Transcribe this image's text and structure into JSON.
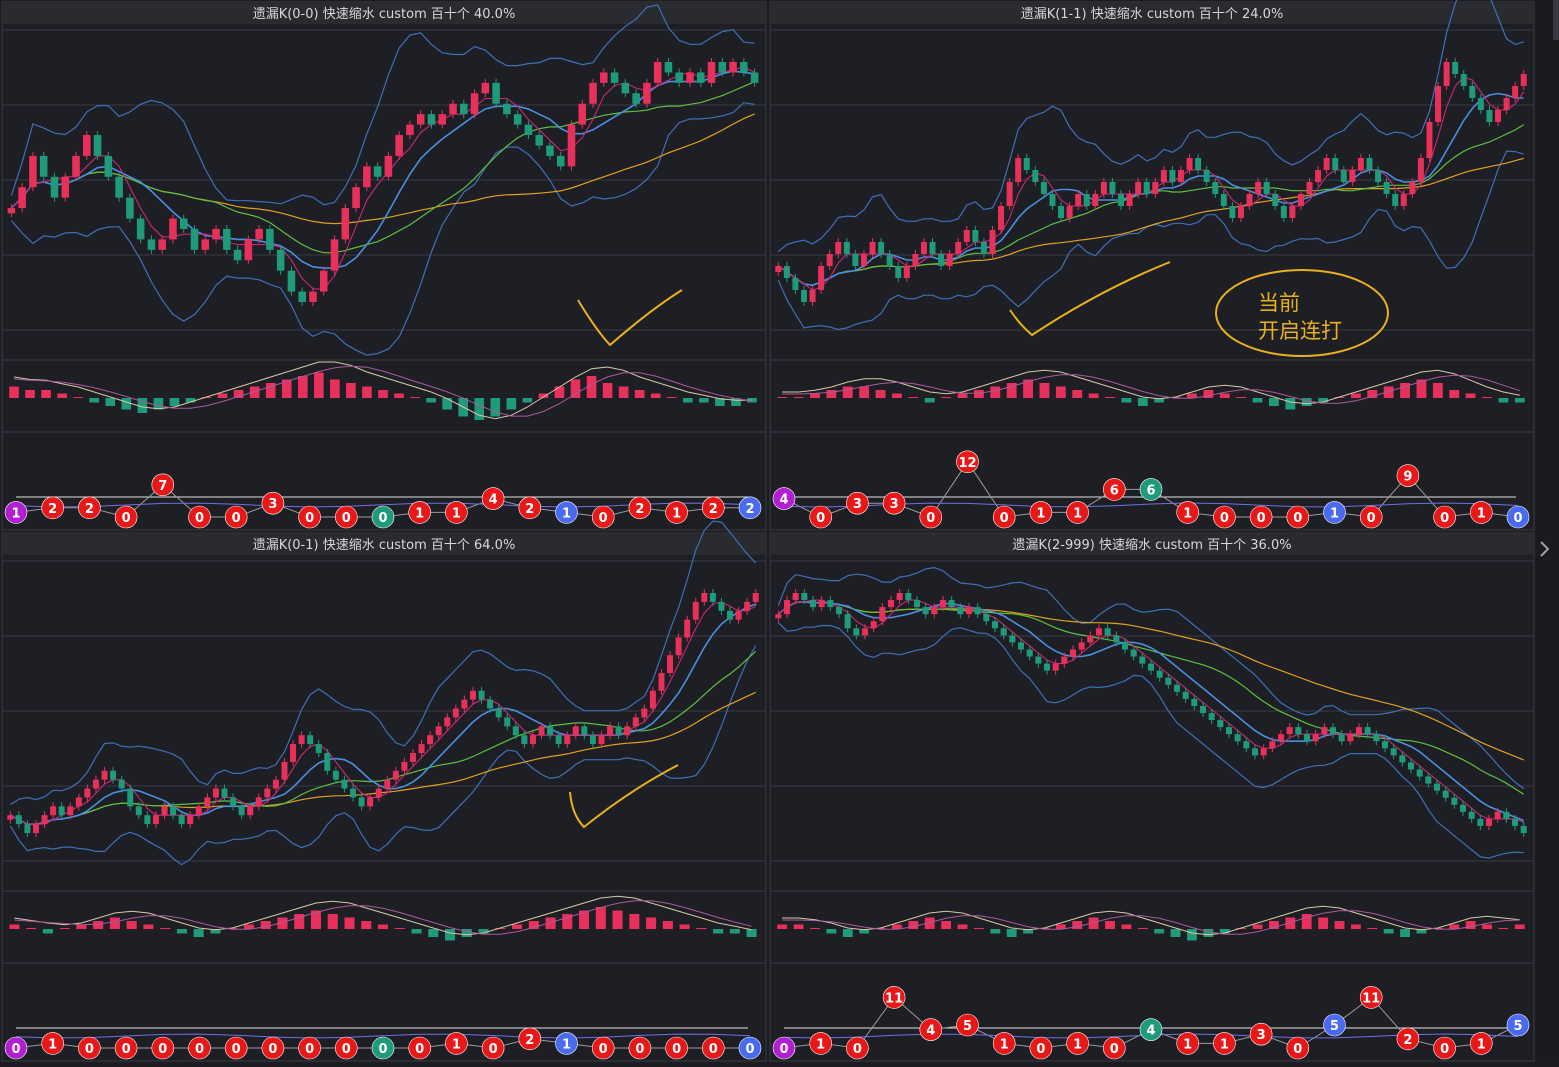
{
  "colors": {
    "background": "#1c1d22",
    "panel_background": "#1e1f25",
    "title_bar": "#2a2b30",
    "up_candle": "#e8315a",
    "down_candle": "#1f9a7a",
    "ma_magenta": "#c8287a",
    "ma_blue": "#4a8ee0",
    "ma_green": "#5cc040",
    "ma_orange": "#e0a020",
    "bollinger": "#3f6fb8",
    "annotation": "#e8b020",
    "bubble_red": "#e81818",
    "bubble_green": "#1f9a7a",
    "bubble_blue": "#4a6af0",
    "bubble_purple": "#b020d0"
  },
  "icons": {
    "right_nav": "chevron-right-icon"
  },
  "chart_data": [
    {
      "type": "candlestick",
      "title": "遗漏K(0-0)  快速缩水  custom  百十个  40.0%",
      "trend_prices": [
        0,
        2,
        5,
        3,
        1,
        3,
        5,
        7,
        5,
        3,
        1,
        -1,
        -3,
        -4,
        -3,
        -1,
        -2,
        -4,
        -3,
        -2,
        -4,
        -5,
        -3,
        -2,
        -4,
        -6,
        -8,
        -9,
        -8,
        -6,
        -3,
        0,
        2,
        4,
        3,
        5,
        7,
        8,
        9,
        8,
        9,
        10,
        9,
        11,
        12,
        10,
        9,
        8,
        7,
        6,
        5,
        4,
        8,
        10,
        12,
        13,
        12,
        11,
        10,
        12,
        14,
        13,
        12,
        13,
        12,
        14,
        13,
        14,
        13,
        12
      ],
      "macd_hist": [
        3,
        2,
        2,
        1,
        0,
        -1,
        -2,
        -3,
        -4,
        -3,
        -2,
        -1,
        0,
        1,
        2,
        3,
        4,
        5,
        6,
        7,
        5,
        4,
        3,
        2,
        1,
        0,
        -1,
        -3,
        -5,
        -6,
        -5,
        -3,
        -1,
        1,
        3,
        5,
        6,
        4,
        3,
        2,
        1,
        0,
        -1,
        -1,
        -2,
        -2,
        -1
      ],
      "miss_bubbles": [
        {
          "v": "1",
          "c": "purple"
        },
        {
          "v": "2",
          "c": "red"
        },
        {
          "v": "2",
          "c": "red"
        },
        {
          "v": "0",
          "c": "red"
        },
        {
          "v": "7",
          "c": "red"
        },
        {
          "v": "0",
          "c": "red"
        },
        {
          "v": "0",
          "c": "red"
        },
        {
          "v": "3",
          "c": "red"
        },
        {
          "v": "0",
          "c": "red"
        },
        {
          "v": "0",
          "c": "red"
        },
        {
          "v": "0",
          "c": "green"
        },
        {
          "v": "1",
          "c": "red"
        },
        {
          "v": "1",
          "c": "red"
        },
        {
          "v": "4",
          "c": "red"
        },
        {
          "v": "2",
          "c": "red"
        },
        {
          "v": "1",
          "c": "blue"
        },
        {
          "v": "0",
          "c": "red"
        },
        {
          "v": "2",
          "c": "red"
        },
        {
          "v": "1",
          "c": "red"
        },
        {
          "v": "2",
          "c": "red"
        },
        {
          "v": "2",
          "c": "blue"
        }
      ],
      "annotation_text": ""
    },
    {
      "type": "candlestick",
      "title": "遗漏K(1-1)  快速缩水  custom  百十个  24.0%",
      "trend_prices": [
        0,
        -1,
        -2,
        -3,
        -2,
        0,
        1,
        2,
        1,
        0,
        1,
        2,
        1,
        0,
        -1,
        0,
        1,
        2,
        1,
        0,
        1,
        2,
        3,
        2,
        1,
        3,
        5,
        7,
        9,
        8,
        7,
        6,
        5,
        4,
        5,
        6,
        5,
        6,
        7,
        6,
        5,
        6,
        7,
        6,
        7,
        8,
        7,
        8,
        9,
        8,
        7,
        6,
        5,
        4,
        5,
        6,
        7,
        6,
        5,
        4,
        5,
        6,
        7,
        8,
        9,
        8,
        7,
        8,
        9,
        8,
        7,
        6,
        5,
        6,
        7,
        9,
        12,
        15,
        17,
        16,
        15,
        14,
        13,
        12,
        13,
        14,
        15,
        16
      ],
      "macd_hist": [
        0,
        0,
        1,
        2,
        3,
        3,
        2,
        1,
        0,
        -1,
        0,
        1,
        2,
        3,
        4,
        5,
        4,
        3,
        2,
        1,
        0,
        -1,
        -2,
        -1,
        0,
        1,
        2,
        1,
        0,
        -1,
        -2,
        -3,
        -2,
        -1,
        0,
        1,
        2,
        3,
        4,
        5,
        4,
        2,
        1,
        0,
        -1,
        -1
      ],
      "miss_bubbles": [
        {
          "v": "4",
          "c": "purple"
        },
        {
          "v": "0",
          "c": "red"
        },
        {
          "v": "3",
          "c": "red"
        },
        {
          "v": "3",
          "c": "red"
        },
        {
          "v": "0",
          "c": "red"
        },
        {
          "v": "12",
          "c": "red"
        },
        {
          "v": "0",
          "c": "red"
        },
        {
          "v": "1",
          "c": "red"
        },
        {
          "v": "1",
          "c": "red"
        },
        {
          "v": "6",
          "c": "red"
        },
        {
          "v": "6",
          "c": "green"
        },
        {
          "v": "1",
          "c": "red"
        },
        {
          "v": "0",
          "c": "red"
        },
        {
          "v": "0",
          "c": "red"
        },
        {
          "v": "0",
          "c": "red"
        },
        {
          "v": "1",
          "c": "blue"
        },
        {
          "v": "0",
          "c": "red"
        },
        {
          "v": "9",
          "c": "red"
        },
        {
          "v": "0",
          "c": "red"
        },
        {
          "v": "1",
          "c": "red"
        },
        {
          "v": "0",
          "c": "blue"
        }
      ],
      "annotation_text": "当前\n开启连打"
    },
    {
      "type": "candlestick",
      "title": "遗漏K(0-1)  快速缩水  custom  百十个  64.0%",
      "trend_prices": [
        0,
        -1,
        -2,
        -1,
        0,
        1,
        0,
        1,
        2,
        3,
        4,
        5,
        4,
        3,
        1,
        0,
        -1,
        0,
        1,
        0,
        -1,
        0,
        1,
        2,
        3,
        2,
        1,
        0,
        1,
        2,
        3,
        4,
        6,
        8,
        9,
        8,
        7,
        5,
        4,
        3,
        2,
        1,
        2,
        3,
        4,
        5,
        6,
        7,
        8,
        9,
        10,
        11,
        12,
        13,
        14,
        13,
        12,
        11,
        10,
        9,
        8,
        9,
        10,
        9,
        8,
        9,
        10,
        9,
        8,
        9,
        10,
        9,
        10,
        11,
        12,
        14,
        16,
        18,
        20,
        22,
        24,
        25,
        24,
        23,
        22,
        23,
        24,
        25
      ],
      "macd_hist": [
        1,
        0,
        -1,
        0,
        1,
        2,
        3,
        2,
        1,
        0,
        -1,
        -2,
        -1,
        0,
        1,
        2,
        3,
        4,
        5,
        4,
        3,
        2,
        1,
        0,
        -1,
        -2,
        -3,
        -2,
        -1,
        0,
        1,
        2,
        3,
        4,
        5,
        6,
        5,
        4,
        3,
        2,
        1,
        0,
        -1,
        -1,
        -2
      ],
      "miss_bubbles": [
        {
          "v": "0",
          "c": "purple"
        },
        {
          "v": "1",
          "c": "red"
        },
        {
          "v": "0",
          "c": "red"
        },
        {
          "v": "0",
          "c": "red"
        },
        {
          "v": "0",
          "c": "red"
        },
        {
          "v": "0",
          "c": "red"
        },
        {
          "v": "0",
          "c": "red"
        },
        {
          "v": "0",
          "c": "red"
        },
        {
          "v": "0",
          "c": "red"
        },
        {
          "v": "0",
          "c": "red"
        },
        {
          "v": "0",
          "c": "green"
        },
        {
          "v": "0",
          "c": "red"
        },
        {
          "v": "1",
          "c": "red"
        },
        {
          "v": "0",
          "c": "red"
        },
        {
          "v": "2",
          "c": "red"
        },
        {
          "v": "1",
          "c": "blue"
        },
        {
          "v": "0",
          "c": "red"
        },
        {
          "v": "0",
          "c": "red"
        },
        {
          "v": "0",
          "c": "red"
        },
        {
          "v": "0",
          "c": "red"
        },
        {
          "v": "0",
          "c": "blue"
        }
      ],
      "annotation_text": ""
    },
    {
      "type": "candlestick",
      "title": "遗漏K(2-999)  快速缩水  custom  百十个  36.0%",
      "trend_prices": [
        20,
        22,
        23,
        22,
        21,
        22,
        21,
        20,
        18,
        17,
        18,
        19,
        21,
        22,
        23,
        22,
        21,
        20,
        21,
        22,
        21,
        20,
        21,
        20,
        19,
        18,
        17,
        16,
        15,
        14,
        13,
        12,
        13,
        14,
        15,
        16,
        17,
        18,
        17,
        16,
        15,
        14,
        13,
        12,
        11,
        10,
        9,
        8,
        7,
        6,
        5,
        4,
        3,
        2,
        1,
        0,
        1,
        2,
        3,
        4,
        3,
        2,
        3,
        4,
        3,
        2,
        3,
        4,
        3,
        2,
        1,
        0,
        -1,
        -2,
        -3,
        -4,
        -5,
        -6,
        -7,
        -8,
        -9,
        -10,
        -9,
        -8,
        -9,
        -10,
        -11
      ],
      "macd_hist": [
        1,
        1,
        0,
        -1,
        -2,
        -1,
        0,
        1,
        2,
        3,
        2,
        1,
        0,
        -1,
        -2,
        -1,
        0,
        1,
        2,
        3,
        2,
        1,
        0,
        -1,
        -2,
        -3,
        -2,
        -1,
        0,
        1,
        2,
        3,
        4,
        3,
        2,
        1,
        0,
        -1,
        -2,
        -1,
        0,
        1,
        2,
        1,
        0,
        1
      ],
      "miss_bubbles": [
        {
          "v": "0",
          "c": "purple"
        },
        {
          "v": "1",
          "c": "red"
        },
        {
          "v": "0",
          "c": "red"
        },
        {
          "v": "11",
          "c": "red"
        },
        {
          "v": "4",
          "c": "red"
        },
        {
          "v": "5",
          "c": "red"
        },
        {
          "v": "1",
          "c": "red"
        },
        {
          "v": "0",
          "c": "red"
        },
        {
          "v": "1",
          "c": "red"
        },
        {
          "v": "0",
          "c": "red"
        },
        {
          "v": "4",
          "c": "green"
        },
        {
          "v": "1",
          "c": "red"
        },
        {
          "v": "1",
          "c": "red"
        },
        {
          "v": "3",
          "c": "red"
        },
        {
          "v": "0",
          "c": "red"
        },
        {
          "v": "5",
          "c": "blue"
        },
        {
          "v": "11",
          "c": "red"
        },
        {
          "v": "2",
          "c": "red"
        },
        {
          "v": "0",
          "c": "red"
        },
        {
          "v": "1",
          "c": "red"
        },
        {
          "v": "5",
          "c": "blue"
        }
      ],
      "annotation_text": ""
    }
  ]
}
